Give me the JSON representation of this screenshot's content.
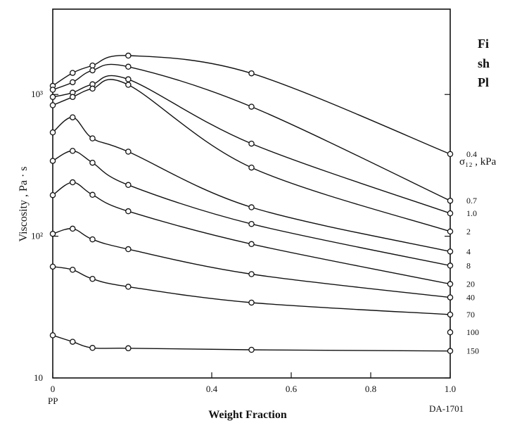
{
  "caption": {
    "line1": "Fi",
    "line2": "sh",
    "line3": "Pl"
  },
  "chart_data": {
    "type": "line",
    "title": "",
    "xlabel": "Weight  Fraction",
    "ylabel": "Viscosity ,      Pa · s",
    "y_scale": "log",
    "xlim": [
      0,
      1.0
    ],
    "ylim": [
      10,
      4000
    ],
    "x_ticks": [
      {
        "value": 0,
        "label": "0"
      },
      {
        "value": 0.4,
        "label": "0.4"
      },
      {
        "value": 0.6,
        "label": "0.6"
      },
      {
        "value": 0.8,
        "label": "0.8"
      },
      {
        "value": 1.0,
        "label": "1.0"
      }
    ],
    "y_ticks": [
      {
        "value": 10,
        "label": "10"
      },
      {
        "value": 100,
        "label": "10²"
      },
      {
        "value": 1000,
        "label": "10³"
      }
    ],
    "x_end_labels": {
      "left": "PP",
      "right": "DA-1701"
    },
    "legend_title": "σ₁₂ , kPa",
    "series": [
      {
        "name": "0.4",
        "points": [
          [
            0,
            1150
          ],
          [
            0.05,
            1420
          ],
          [
            0.1,
            1600
          ],
          [
            0.19,
            1880
          ],
          [
            0.5,
            1410
          ],
          [
            1.0,
            380
          ]
        ]
      },
      {
        "name": "0.7",
        "points": [
          [
            0,
            1080
          ],
          [
            0.05,
            1220
          ],
          [
            0.1,
            1480
          ],
          [
            0.19,
            1570
          ],
          [
            0.5,
            820
          ],
          [
            1.0,
            178
          ]
        ]
      },
      {
        "name": "1.0",
        "points": [
          [
            0,
            960
          ],
          [
            0.05,
            1030
          ],
          [
            0.1,
            1180
          ],
          [
            0.19,
            1280
          ],
          [
            0.5,
            450
          ],
          [
            1.0,
            145
          ]
        ]
      },
      {
        "name": "2",
        "points": [
          [
            0,
            840
          ],
          [
            0.05,
            960
          ],
          [
            0.1,
            1100
          ],
          [
            0.19,
            1170
          ],
          [
            0.5,
            305
          ],
          [
            1.0,
            108
          ]
        ]
      },
      {
        "name": "4",
        "points": [
          [
            0,
            540
          ],
          [
            0.05,
            690
          ],
          [
            0.1,
            490
          ],
          [
            0.19,
            395
          ],
          [
            0.5,
            160
          ],
          [
            1.0,
            78
          ]
        ]
      },
      {
        "name": "8",
        "points": [
          [
            0,
            340
          ],
          [
            0.05,
            400
          ],
          [
            0.1,
            330
          ],
          [
            0.19,
            230
          ],
          [
            0.5,
            122
          ],
          [
            1.0,
            62
          ]
        ]
      },
      {
        "name": "20",
        "points": [
          [
            0,
            195
          ],
          [
            0.05,
            240
          ],
          [
            0.1,
            196
          ],
          [
            0.19,
            150
          ],
          [
            0.5,
            88
          ],
          [
            1.0,
            46
          ]
        ]
      },
      {
        "name": "40",
        "points": [
          [
            0,
            104
          ],
          [
            0.05,
            113
          ],
          [
            0.1,
            95
          ],
          [
            0.19,
            81
          ],
          [
            0.5,
            54
          ],
          [
            1.0,
            37
          ]
        ]
      },
      {
        "name": "70",
        "points": [
          [
            0,
            61
          ],
          [
            0.05,
            58
          ],
          [
            0.1,
            50
          ],
          [
            0.19,
            44
          ],
          [
            0.5,
            34
          ],
          [
            1.0,
            28
          ]
        ]
      },
      {
        "name": "100",
        "points": [
          [
            1.0,
            21
          ]
        ]
      },
      {
        "name": "150",
        "points": [
          [
            0,
            20
          ],
          [
            0.05,
            18
          ],
          [
            0.1,
            16.3
          ],
          [
            0.19,
            16.2
          ],
          [
            0.5,
            15.8
          ],
          [
            1.0,
            15.5
          ]
        ]
      }
    ],
    "grid": false,
    "markers": "open-circle"
  }
}
